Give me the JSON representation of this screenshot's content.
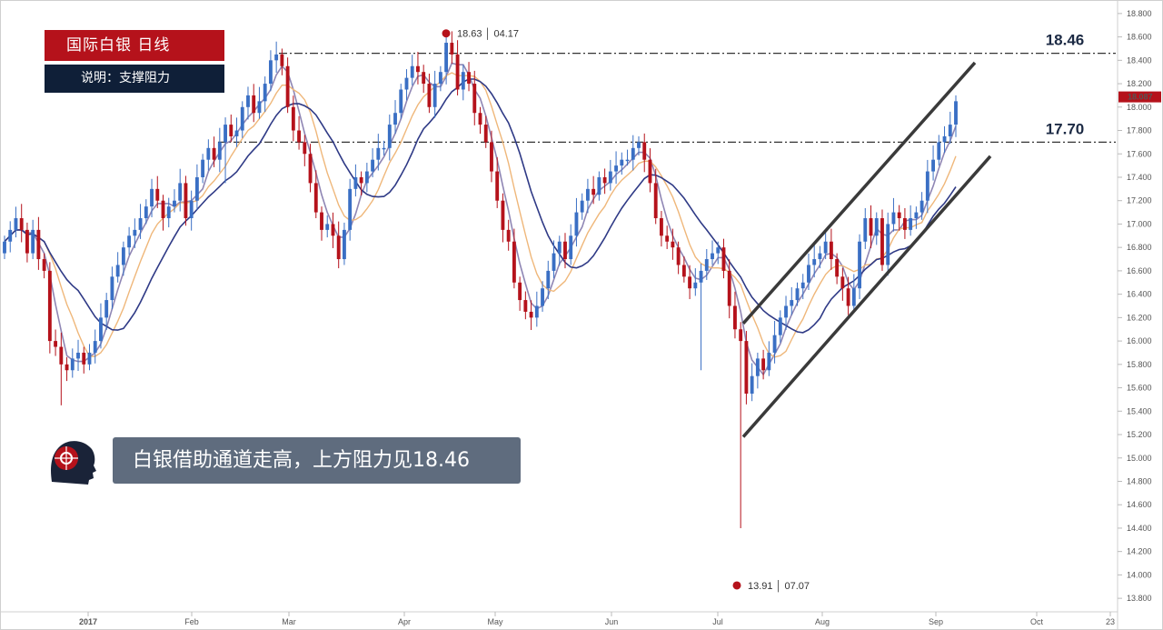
{
  "header": {
    "title": "国际白银  日线",
    "subtitle": "说明：支撑阻力"
  },
  "note": "白银借助通道走高，上方阻力见18.46",
  "colors": {
    "up": "#3a6fc4",
    "down": "#b5121b",
    "ma_fast": "#8f86b4",
    "ma_mid": "#efb77a",
    "ma_slow": "#2f3a86",
    "title_bg": "#b5121b",
    "subtitle_bg": "#0f1f38",
    "note_bg": "#5f6c7e"
  },
  "chart_data": {
    "type": "candlestick",
    "title": "国际白银  日线",
    "ylim": [
      13.7,
      18.9
    ],
    "y_ticks": [
      "18.800",
      "18.600",
      "18.400",
      "18.200",
      "18.000",
      "17.800",
      "17.600",
      "17.400",
      "17.200",
      "17.000",
      "16.800",
      "16.600",
      "16.400",
      "16.200",
      "16.000",
      "15.800",
      "15.600",
      "15.400",
      "15.200",
      "15.000",
      "14.800",
      "14.600",
      "14.400",
      "14.200",
      "14.000",
      "13.800"
    ],
    "x_ticks": [
      "2017",
      "Feb",
      "Mar",
      "Apr",
      "May",
      "Jun",
      "Jul",
      "Aug",
      "Sep",
      "Oct",
      "23"
    ],
    "last_price": "18.087",
    "resistance_levels": [
      {
        "label": "18.46",
        "value": 18.46
      },
      {
        "label": "17.70",
        "value": 17.7
      }
    ],
    "annotations": [
      {
        "value": "18.63",
        "date": "04.17",
        "label": "18.63 │ 04.17"
      },
      {
        "value": "13.91",
        "date": "07.07",
        "label": "13.91 │ 07.07"
      }
    ],
    "channel": {
      "upper": [
        [
          15.97,
          16.15
        ],
        [
          17.54,
          18.38
        ]
      ],
      "lower": [
        [
          15.97,
          15.18
        ],
        [
          17.61,
          17.58
        ]
      ]
    },
    "closes": [
      16.85,
      16.95,
      17.05,
      16.95,
      16.75,
      16.95,
      16.7,
      16.6,
      16.0,
      15.95,
      15.8,
      15.75,
      15.85,
      15.9,
      15.8,
      15.9,
      16.0,
      16.2,
      16.35,
      16.55,
      16.65,
      16.8,
      16.9,
      16.95,
      17.05,
      17.15,
      17.3,
      17.2,
      17.05,
      17.15,
      17.2,
      17.35,
      17.05,
      17.2,
      17.4,
      17.55,
      17.65,
      17.55,
      17.7,
      17.85,
      17.75,
      17.8,
      18.0,
      18.1,
      17.95,
      18.05,
      18.2,
      18.4,
      18.45,
      18.35,
      18.0,
      17.8,
      17.7,
      17.6,
      17.35,
      17.1,
      16.95,
      17.0,
      16.9,
      16.7,
      16.95,
      17.3,
      17.4,
      17.35,
      17.45,
      17.55,
      17.65,
      17.65,
      17.85,
      17.95,
      18.15,
      18.25,
      18.35,
      18.3,
      18.2,
      18.0,
      18.2,
      18.3,
      18.55,
      18.45,
      18.15,
      18.3,
      18.2,
      17.95,
      17.85,
      17.7,
      17.45,
      17.2,
      16.95,
      16.85,
      16.5,
      16.35,
      16.25,
      16.2,
      16.3,
      16.45,
      16.6,
      16.75,
      16.85,
      16.7,
      16.9,
      17.1,
      17.2,
      17.3,
      17.25,
      17.4,
      17.35,
      17.45,
      17.5,
      17.55,
      17.55,
      17.65,
      17.7,
      17.55,
      17.35,
      17.05,
      16.9,
      16.85,
      16.8,
      16.65,
      16.55,
      16.45,
      16.5,
      16.6,
      16.7,
      16.75,
      16.8,
      16.6,
      16.3,
      16.1,
      16.0,
      15.55,
      15.7,
      15.85,
      15.75,
      15.9,
      16.05,
      16.2,
      16.3,
      16.35,
      16.45,
      16.5,
      16.65,
      16.7,
      16.75,
      16.85,
      16.7,
      16.55,
      16.45,
      16.3,
      16.45,
      16.85,
      17.05,
      16.9,
      17.05,
      16.65,
      17.0,
      17.1,
      17.05,
      16.95,
      17.05,
      17.1,
      17.2,
      17.45,
      17.55,
      17.7,
      17.75,
      17.85,
      18.05
    ]
  }
}
